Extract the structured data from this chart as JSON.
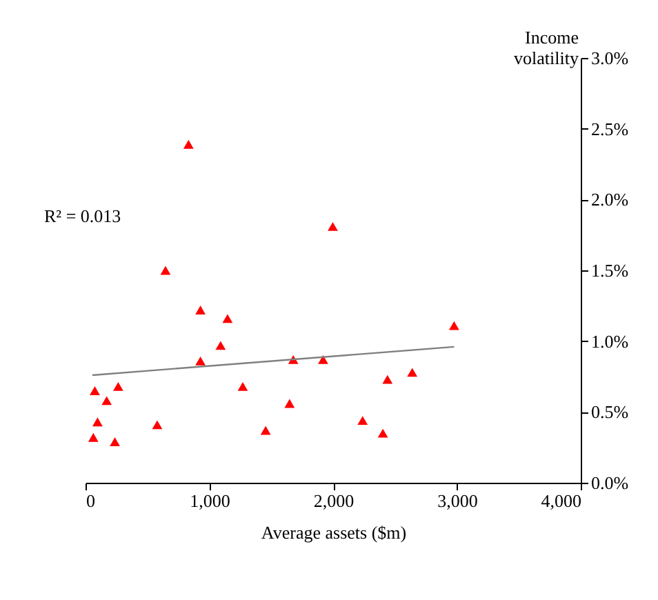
{
  "chart_data": {
    "type": "scatter",
    "xlabel": "Average assets ($m)",
    "ylabel": "Income volatility",
    "annotations": [
      "R² = 0.013"
    ],
    "xlim": [
      0,
      4000
    ],
    "xticks": [
      {
        "value": 0,
        "label": "0"
      },
      {
        "value": 1000,
        "label": "1,000"
      },
      {
        "value": 2000,
        "label": "2,000"
      },
      {
        "value": 3000,
        "label": "3,000"
      },
      {
        "value": 4000,
        "label": "4,000"
      }
    ],
    "ylim": [
      0,
      3.0
    ],
    "yticks": [
      {
        "value": 0,
        "label": "0.0%"
      },
      {
        "value": 0.5,
        "label": "0.5%"
      },
      {
        "value": 1.0,
        "label": "1.0%"
      },
      {
        "value": 1.5,
        "label": "1.5%"
      },
      {
        "value": 2.0,
        "label": "2.0%"
      },
      {
        "value": 2.5,
        "label": "2.5%"
      },
      {
        "value": 3.0,
        "label": "3.0%"
      }
    ],
    "grid": false,
    "series": [
      {
        "color": "#ff0000",
        "marker": "triangle",
        "x": [
          832,
          646,
          928,
          1147,
          1091,
          928,
          75,
          264,
          171,
          1270,
          97,
          579,
          63,
          237,
          1455,
          1648,
          1678,
          1919,
          1997,
          2977,
          2238,
          2402,
          2439,
          2639
        ],
        "values": [
          2.39,
          1.5,
          1.22,
          1.16,
          0.97,
          0.86,
          0.65,
          0.68,
          0.58,
          0.68,
          0.43,
          0.41,
          0.32,
          0.29,
          0.37,
          0.56,
          0.87,
          0.87,
          1.81,
          1.11,
          0.44,
          0.35,
          0.73,
          0.78
        ]
      },
      {
        "type": "line",
        "color": "#808080",
        "marker": "none",
        "line_style": "solid",
        "x": [
          55,
          2977
        ],
        "values": [
          0.76,
          0.96
        ]
      }
    ]
  }
}
